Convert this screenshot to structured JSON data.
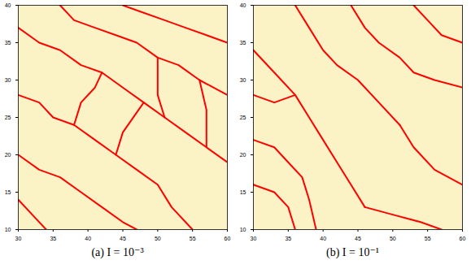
{
  "chart_data": [
    {
      "type": "line",
      "title": "(a) I = 10⁻³",
      "xlim": [
        30,
        60
      ],
      "ylim": [
        10,
        40
      ],
      "xticks": [
        30,
        35,
        40,
        45,
        50,
        55,
        60
      ],
      "yticks": [
        10,
        15,
        20,
        25,
        30,
        35,
        40
      ],
      "series": [
        {
          "color": "#ff0000",
          "values": [
            [
              30,
              37
            ],
            [
              33,
              35
            ],
            [
              36,
              34
            ],
            [
              39,
              32
            ],
            [
              42,
              31
            ],
            [
              45,
              29
            ],
            [
              48,
              27
            ],
            [
              51,
              25
            ],
            [
              54,
              23
            ],
            [
              57,
              21
            ],
            [
              60,
              19
            ]
          ]
        },
        {
          "color": "#ff0000",
          "values": [
            [
              30,
              28
            ],
            [
              33,
              27
            ],
            [
              35,
              25
            ],
            [
              38,
              24
            ],
            [
              41,
              22
            ],
            [
              44,
              20
            ],
            [
              47,
              18
            ],
            [
              50,
              16
            ],
            [
              52,
              13
            ],
            [
              55,
              10
            ]
          ]
        },
        {
          "color": "#ff0000",
          "values": [
            [
              36,
              40
            ],
            [
              38,
              38
            ],
            [
              41,
              37
            ],
            [
              44,
              36
            ],
            [
              47,
              35
            ],
            [
              50,
              33
            ],
            [
              53,
              32
            ],
            [
              56,
              30
            ],
            [
              60,
              28
            ]
          ]
        },
        {
          "color": "#ff0000",
          "values": [
            [
              30,
              20
            ],
            [
              33,
              18
            ],
            [
              36,
              17
            ],
            [
              39,
              15
            ],
            [
              42,
              13
            ],
            [
              45,
              11
            ],
            [
              47,
              10
            ]
          ]
        },
        {
          "color": "#ff0000",
          "values": [
            [
              45,
              40
            ],
            [
              48,
              39
            ],
            [
              51,
              38
            ],
            [
              54,
              37
            ],
            [
              57,
              36
            ],
            [
              60,
              35
            ]
          ]
        },
        {
          "color": "#ff0000",
          "values": [
            [
              38,
              24
            ],
            [
              39,
              27
            ],
            [
              41,
              29
            ],
            [
              42,
              31
            ]
          ]
        },
        {
          "color": "#ff0000",
          "values": [
            [
              51,
              25
            ],
            [
              50,
              28
            ],
            [
              50,
              33
            ]
          ]
        },
        {
          "color": "#ff0000",
          "values": [
            [
              44,
              20
            ],
            [
              45,
              23
            ],
            [
              48,
              27
            ]
          ]
        },
        {
          "color": "#ff0000",
          "values": [
            [
              30,
              14
            ],
            [
              32,
              12
            ],
            [
              34,
              10
            ]
          ]
        },
        {
          "color": "#ff0000",
          "values": [
            [
              56,
              30
            ],
            [
              57,
              26
            ],
            [
              57,
              21
            ]
          ]
        }
      ]
    },
    {
      "type": "line",
      "title": "(b) I = 10⁻¹",
      "xlim": [
        30,
        60
      ],
      "ylim": [
        10,
        40
      ],
      "xticks": [
        30,
        35,
        40,
        45,
        50,
        55,
        60
      ],
      "yticks": [
        10,
        15,
        20,
        25,
        30,
        35,
        40
      ],
      "series": [
        {
          "color": "#ff0000",
          "values": [
            [
              30,
              22
            ],
            [
              33,
              21
            ],
            [
              35,
              19
            ],
            [
              37,
              17
            ],
            [
              38,
              14
            ],
            [
              39,
              10
            ]
          ]
        },
        {
          "color": "#ff0000",
          "values": [
            [
              30,
              34
            ],
            [
              33,
              31
            ],
            [
              36,
              28
            ],
            [
              38,
              25
            ],
            [
              40,
              22
            ],
            [
              42,
              19
            ],
            [
              44,
              16
            ],
            [
              46,
              13
            ]
          ]
        },
        {
          "color": "#ff0000",
          "values": [
            [
              36,
              40
            ],
            [
              38,
              37
            ],
            [
              40,
              34
            ],
            [
              42,
              32
            ],
            [
              45,
              30
            ],
            [
              48,
              27
            ],
            [
              51,
              24
            ]
          ]
        },
        {
          "color": "#ff0000",
          "values": [
            [
              44,
              40
            ],
            [
              46,
              37
            ],
            [
              48,
              35
            ],
            [
              51,
              33
            ],
            [
              53,
              31
            ],
            [
              56,
              30
            ],
            [
              60,
              29
            ]
          ]
        },
        {
          "color": "#ff0000",
          "values": [
            [
              53,
              40
            ],
            [
              55,
              38
            ],
            [
              57,
              36
            ],
            [
              60,
              35
            ]
          ]
        },
        {
          "color": "#ff0000",
          "values": [
            [
              30,
              28
            ],
            [
              33,
              27
            ],
            [
              36,
              28
            ]
          ]
        },
        {
          "color": "#ff0000",
          "values": [
            [
              51,
              24
            ],
            [
              53,
              21
            ],
            [
              56,
              18
            ],
            [
              60,
              16
            ]
          ]
        },
        {
          "color": "#ff0000",
          "values": [
            [
              30,
              16
            ],
            [
              33,
              15
            ],
            [
              35,
              13
            ],
            [
              36,
              10
            ]
          ]
        },
        {
          "color": "#ff0000",
          "values": [
            [
              46,
              13
            ],
            [
              50,
              12
            ],
            [
              54,
              11
            ],
            [
              57,
              10
            ]
          ]
        }
      ]
    }
  ]
}
